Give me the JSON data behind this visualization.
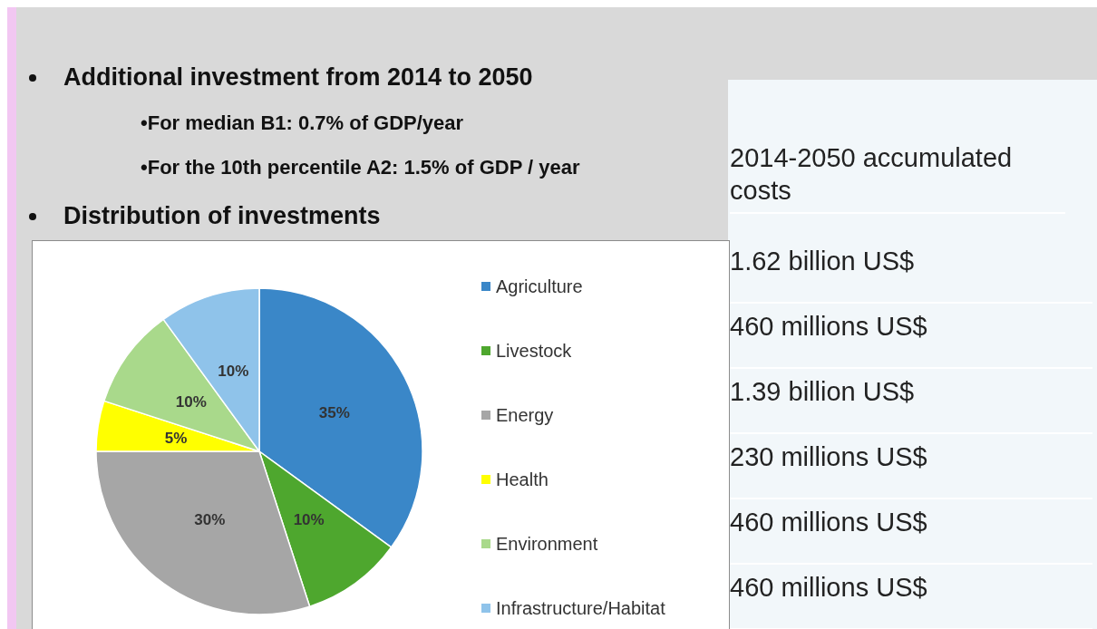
{
  "chart_data": {
    "type": "pie",
    "categories": [
      "Agriculture",
      "Livestock",
      "Energy",
      "Health",
      "Environment",
      "Infrastructure/Habitat"
    ],
    "values": [
      35,
      10,
      30,
      5,
      10,
      10
    ],
    "colors": [
      "#3a87c8",
      "#4ea72e",
      "#a6a6a6",
      "#ffff00",
      "#a9d98b",
      "#8fc3ea"
    ],
    "value_labels": [
      "35%",
      "10%",
      "30%",
      "5%",
      "10%",
      "10%"
    ],
    "legend": "right",
    "annotations": [
      "Additional investment from 2014 to 2050",
      "•For median B1: 0.7% of GDP/year",
      "•For the 10th percentile A2: 1.5% of GDP / year",
      "Distribution of investments",
      "2014-2050 accumulated costs",
      "1.62 billion US$",
      "460 millions US$",
      "1.39 billion US$",
      "230 millions US$",
      "460 millions US$",
      "460 millions US$"
    ]
  }
}
